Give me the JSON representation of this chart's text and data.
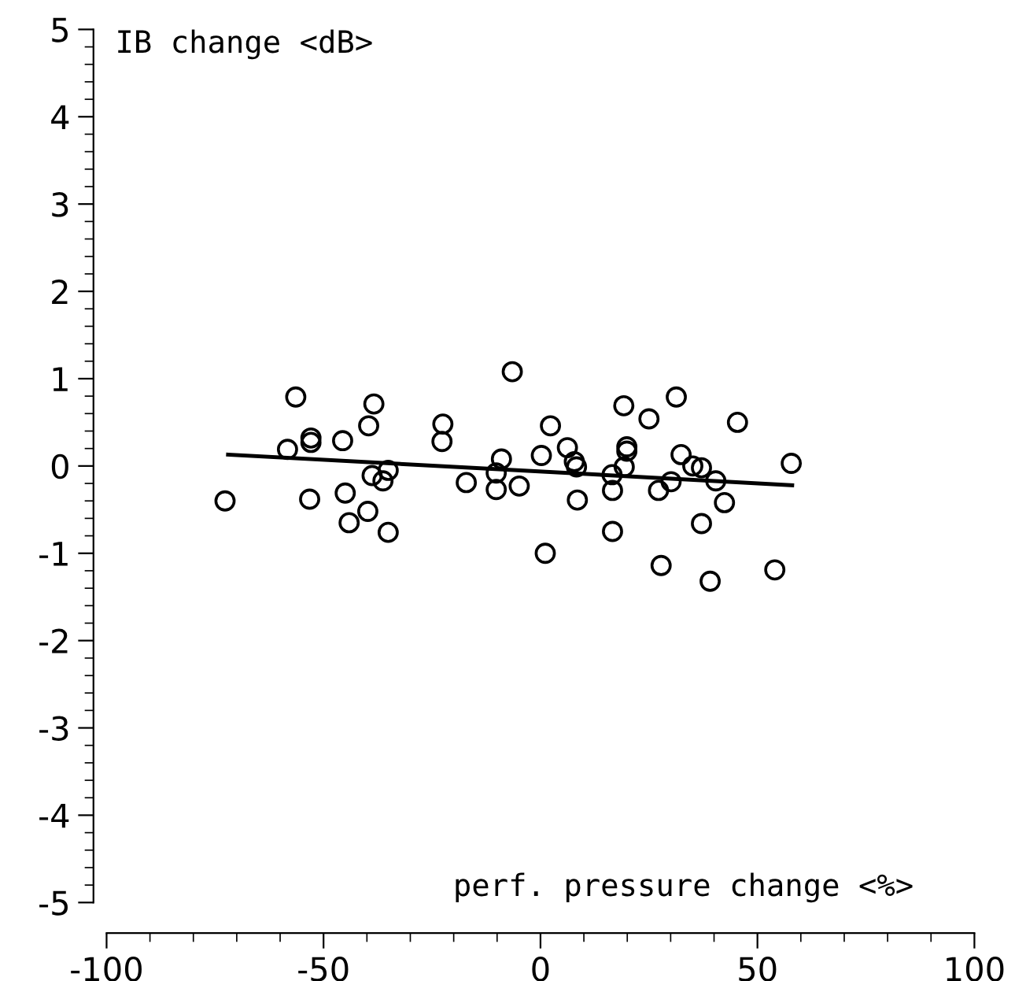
{
  "chart_data": {
    "type": "scatter",
    "xlabel": "perf. pressure change <%>",
    "ylabel": "IB change <dB>",
    "xlim": [
      -100,
      100
    ],
    "ylim": [
      -5,
      5
    ],
    "xticks": [
      -100,
      -50,
      0,
      50,
      100
    ],
    "yticks": [
      -5,
      -4,
      -3,
      -2,
      -1,
      0,
      1,
      2,
      3,
      4,
      5
    ],
    "grid": false,
    "legend": false,
    "series": [
      {
        "color": "#000000",
        "marker": "circle",
        "x": [
          -72.7,
          -56.4,
          -58.3,
          -52.9,
          -52.9,
          -53.2,
          -45.6,
          -45.0,
          -44.1,
          -39.8,
          -39.6,
          -38.4,
          -38.8,
          -36.3,
          -35.1,
          -35.1,
          -22.5,
          -22.7,
          -17.1,
          -6.5,
          -9.0,
          -10.2,
          -10.2,
          -4.9,
          0.2,
          2.3,
          1.1,
          6.2,
          7.8,
          8.3,
          8.5,
          16.5,
          16.6,
          16.6,
          19.2,
          19.9,
          19.9,
          19.3,
          25.0,
          27.2,
          27.8,
          30.1,
          31.3,
          32.4,
          35.1,
          37.1,
          37.1,
          40.4,
          42.4,
          39.1,
          45.4,
          54.0,
          57.8
        ],
        "values": [
          -0.4,
          0.79,
          0.19,
          0.32,
          0.27,
          -0.38,
          0.29,
          -0.31,
          -0.65,
          -0.52,
          0.46,
          0.71,
          -0.11,
          -0.17,
          -0.05,
          -0.76,
          0.48,
          0.28,
          -0.19,
          1.08,
          0.08,
          -0.08,
          -0.27,
          -0.23,
          0.12,
          0.46,
          -1.0,
          0.21,
          0.05,
          -0.01,
          -0.39,
          -0.1,
          -0.28,
          -0.75,
          0.69,
          0.22,
          0.17,
          -0.01,
          0.54,
          -0.28,
          -1.14,
          -0.18,
          0.79,
          0.13,
          0.0,
          -0.02,
          -0.66,
          -0.17,
          -0.42,
          -1.32,
          0.5,
          -1.19,
          0.03
        ]
      },
      {
        "type": "line",
        "color": "#000000",
        "marker": "none",
        "line_style": "solid",
        "x": [
          -72,
          58
        ],
        "values": [
          0.13,
          -0.22
        ]
      }
    ]
  }
}
